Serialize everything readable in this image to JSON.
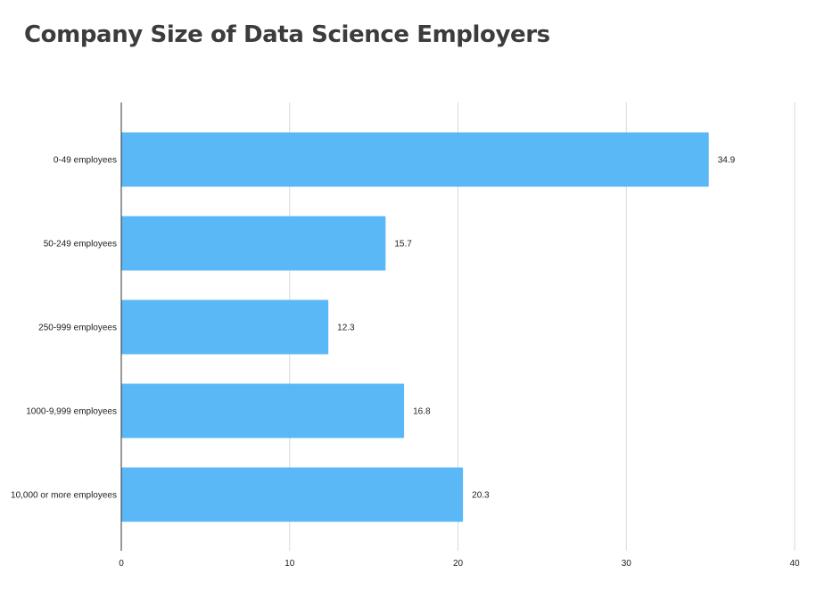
{
  "title": "Company Size of Data Science Employers",
  "chart_data": {
    "type": "bar",
    "orientation": "horizontal",
    "title": "Company Size of Data Science Employers",
    "xlabel": "",
    "ylabel": "",
    "categories": [
      "0-49 employees",
      "50-249 employees",
      "250-999 employees",
      "1000-9,999 employees",
      "10,000 or more employees"
    ],
    "values": [
      34.9,
      15.7,
      12.3,
      16.8,
      20.3
    ],
    "value_labels": [
      "34.9",
      "15.7",
      "12.3",
      "16.8",
      "20.3"
    ],
    "xlim": [
      0,
      40
    ],
    "xticks": [
      "0",
      "10",
      "20",
      "30",
      "40"
    ],
    "grid": true,
    "legend": "none",
    "bar_color": "#5bb8f6",
    "grid_color": "#d9d9d9",
    "axis_color": "#333333"
  }
}
